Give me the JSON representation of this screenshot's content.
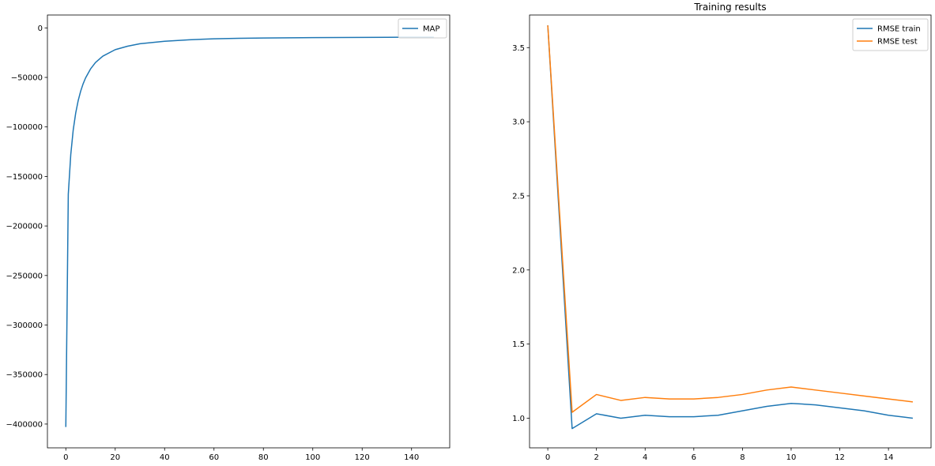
{
  "chart_data": [
    {
      "type": "line",
      "title": "",
      "xlabel": "",
      "ylabel": "",
      "xlim": [
        -7.45,
        155.45
      ],
      "ylim": [
        -424000,
        13000
      ],
      "xticks": [
        0,
        20,
        40,
        60,
        80,
        100,
        120,
        140
      ],
      "xtick_labels": [
        "0",
        "20",
        "40",
        "60",
        "80",
        "100",
        "120",
        "140"
      ],
      "yticks": [
        0,
        -50000,
        -100000,
        -150000,
        -200000,
        -250000,
        -300000,
        -350000,
        -400000
      ],
      "ytick_labels": [
        "0",
        "−50000",
        "−100000",
        "−150000",
        "−200000",
        "−250000",
        "−300000",
        "−350000",
        "−400000"
      ],
      "grid": false,
      "legend": "top-right",
      "series": [
        {
          "name": "MAP",
          "color": "#1f77b4",
          "x": [
            0,
            1,
            2,
            3,
            4,
            5,
            6,
            7,
            8,
            10,
            12,
            15,
            20,
            25,
            30,
            40,
            50,
            60,
            70,
            80,
            90,
            100,
            110,
            120,
            130,
            140,
            149
          ],
          "y": [
            -403000,
            -168000,
            -128000,
            -103000,
            -86000,
            -73500,
            -64000,
            -56500,
            -50500,
            -41500,
            -35000,
            -28500,
            -22000,
            -18500,
            -16000,
            -13500,
            -12000,
            -11000,
            -10500,
            -10200,
            -10000,
            -9800,
            -9700,
            -9600,
            -9500,
            -9450,
            -9400
          ]
        }
      ]
    },
    {
      "type": "line",
      "title": "Training results",
      "xlabel": "",
      "ylabel": "",
      "xlim": [
        -0.75,
        15.75
      ],
      "ylim": [
        0.8,
        3.72
      ],
      "xticks": [
        0,
        2,
        4,
        6,
        8,
        10,
        12,
        14
      ],
      "xtick_labels": [
        "0",
        "2",
        "4",
        "6",
        "8",
        "10",
        "12",
        "14"
      ],
      "yticks": [
        1.0,
        1.5,
        2.0,
        2.5,
        3.0,
        3.5
      ],
      "ytick_labels": [
        "1.0",
        "1.5",
        "2.0",
        "2.5",
        "3.0",
        "3.5"
      ],
      "grid": false,
      "legend": "top-right",
      "series": [
        {
          "name": "RMSE train",
          "color": "#1f77b4",
          "x": [
            0,
            1,
            2,
            3,
            4,
            5,
            6,
            7,
            8,
            9,
            10,
            11,
            12,
            13,
            14,
            15
          ],
          "y": [
            3.65,
            0.93,
            1.03,
            1.0,
            1.02,
            1.01,
            1.01,
            1.02,
            1.05,
            1.08,
            1.1,
            1.09,
            1.07,
            1.05,
            1.02,
            1.0
          ]
        },
        {
          "name": "RMSE test",
          "color": "#ff7f0e",
          "x": [
            0,
            1,
            2,
            3,
            4,
            5,
            6,
            7,
            8,
            9,
            10,
            11,
            12,
            13,
            14,
            15
          ],
          "y": [
            3.65,
            1.04,
            1.16,
            1.12,
            1.14,
            1.13,
            1.13,
            1.14,
            1.16,
            1.19,
            1.21,
            1.19,
            1.17,
            1.15,
            1.13,
            1.11
          ]
        }
      ]
    }
  ]
}
